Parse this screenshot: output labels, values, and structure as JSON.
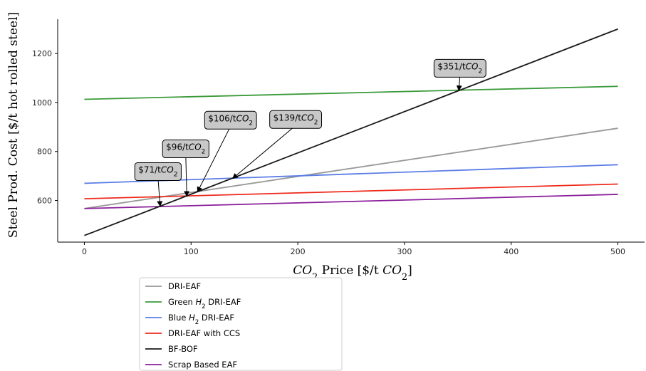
{
  "chart_data": {
    "type": "line",
    "xlabel": "CO2 Price [$/t CO2]",
    "ylabel": "Steel Prod. Cost [$/t hot rolled steel]",
    "xlim": [
      -25,
      525
    ],
    "ylim": [
      430,
      1340
    ],
    "xticks": [
      0,
      100,
      200,
      300,
      400,
      500
    ],
    "yticks": [
      600,
      800,
      1000,
      1200
    ],
    "grid": false,
    "legend_position": "below-left",
    "x": [
      0,
      500
    ],
    "series": [
      {
        "name": "DRI-EAF",
        "color": "#999999",
        "values": [
          567,
          895
        ]
      },
      {
        "name": "Green H2 DRI-EAF",
        "color": "#3a9a3a",
        "values": [
          1013,
          1066
        ]
      },
      {
        "name": "Blue H2 DRI-EAF",
        "color": "#5b7de6",
        "values": [
          670,
          746
        ]
      },
      {
        "name": "DRI-EAF with CCS",
        "color": "#ee2a1b",
        "values": [
          607,
          667
        ]
      },
      {
        "name": "BF-BOF",
        "color": "#1a1a1a",
        "values": [
          457,
          1300
        ]
      },
      {
        "name": "Scrap Based EAF",
        "color": "#8b1f9b",
        "values": [
          567,
          625
        ]
      }
    ],
    "annotations": [
      {
        "label": "$71/tCO2",
        "point": [
          71,
          577
        ],
        "text_at": [
          69,
          725
        ]
      },
      {
        "label": "$96/tCO2",
        "point": [
          96,
          618
        ],
        "text_at": [
          95,
          818
        ]
      },
      {
        "label": "$106/tCO2",
        "point": [
          106,
          635
        ],
        "text_at": [
          137,
          935
        ]
      },
      {
        "label": "$139/tCO2",
        "point": [
          139,
          690
        ],
        "text_at": [
          198,
          938
        ]
      },
      {
        "label": "$351/tCO2",
        "point": [
          351,
          1049
        ],
        "text_at": [
          352,
          1147
        ]
      }
    ]
  }
}
